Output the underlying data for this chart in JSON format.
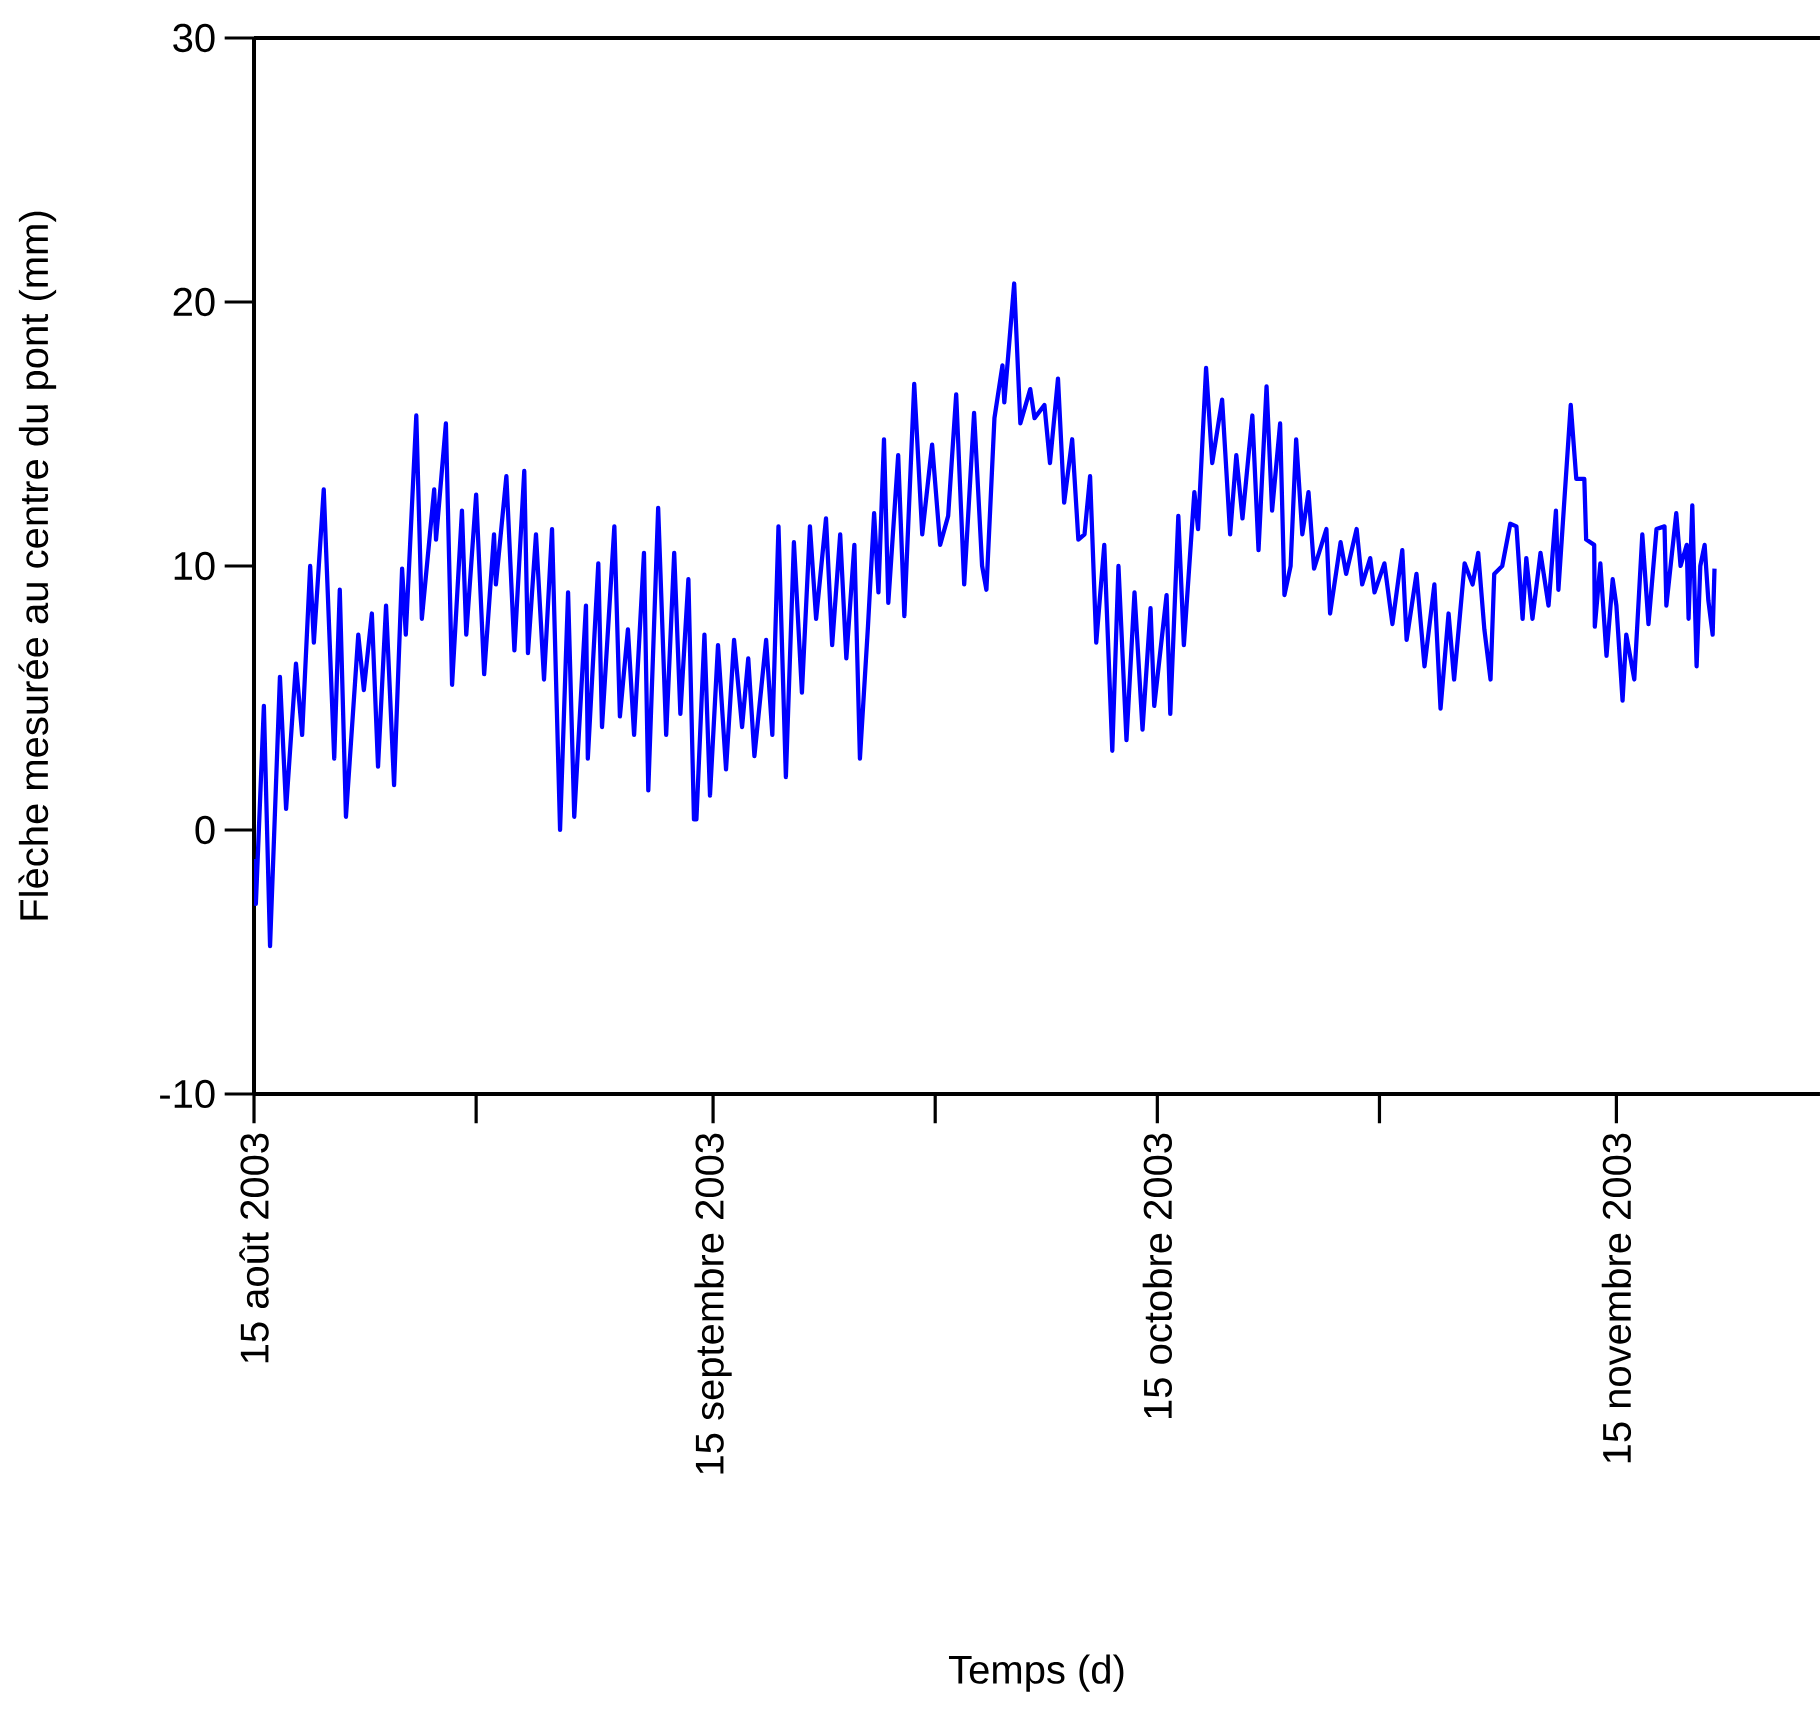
{
  "chart_data": {
    "type": "line",
    "xlabel": "Temps (d)",
    "ylabel": "Flèche mesurée au centre du pont (mm)",
    "xlim": [
      "2003-08-15",
      "2003-11-28T18:00"
    ],
    "xticks": [
      {
        "value": "2003-08-15",
        "label": "15 août 2003"
      },
      {
        "value": "2003-08-30",
        "label": null
      },
      {
        "value": "2003-09-15",
        "label": "15 septembre 2003"
      },
      {
        "value": "2003-09-30",
        "label": null
      },
      {
        "value": "2003-10-15",
        "label": "15 octobre 2003"
      },
      {
        "value": "2003-10-30",
        "label": null
      },
      {
        "value": "2003-11-15",
        "label": "15 novembre 2003"
      }
    ],
    "ylim": [
      -10,
      30
    ],
    "yticks": [
      -10,
      0,
      10,
      20,
      30
    ],
    "series": [
      {
        "color": "#0000ff",
        "x": [
          "2003-08-15T00:00",
          "2003-08-15T03:00",
          "2003-08-15T16:00",
          "2003-08-16T02:00",
          "2003-08-16T18:00",
          "2003-08-17T04:00",
          "2003-08-17T20:00",
          "2003-08-18T06:00",
          "2003-08-18T19:00",
          "2003-08-19T01:00",
          "2003-08-19T17:00",
          "2003-08-20T10:00",
          "2003-08-20T19:00",
          "2003-08-21T05:00",
          "2003-08-22T01:00",
          "2003-08-22T10:00",
          "2003-08-22T23:00",
          "2003-08-23T09:00",
          "2003-08-23T22:00",
          "2003-08-24T11:00",
          "2003-08-25T00:00",
          "2003-08-25T06:00",
          "2003-08-25T23:00",
          "2003-08-26T08:00",
          "2003-08-27T04:00",
          "2003-08-27T07:00",
          "2003-08-27T23:00",
          "2003-08-28T09:00",
          "2003-08-29T01:00",
          "2003-08-29T08:00",
          "2003-08-30T00:00",
          "2003-08-30T13:00",
          "2003-08-31T05:00",
          "2003-08-31T08:00",
          "2003-09-01T01:00",
          "2003-09-01T14:00",
          "2003-09-02T06:00",
          "2003-09-02T12:00",
          "2003-09-03T01:00",
          "2003-09-03T14:00",
          "2003-09-04T03:00",
          "2003-09-04T16:00",
          "2003-09-05T05:00",
          "2003-09-05T15:00",
          "2003-09-06T10:00",
          "2003-09-06T13:00",
          "2003-09-07T06:00",
          "2003-09-07T12:00",
          "2003-09-08T08:00",
          "2003-09-08T17:00",
          "2003-09-09T06:00",
          "2003-09-09T16:00",
          "2003-09-10T08:00",
          "2003-09-10T15:00",
          "2003-09-11T07:00",
          "2003-09-11T20:00",
          "2003-09-12T09:00",
          "2003-09-12T19:00",
          "2003-09-13T08:00",
          "2003-09-13T17:00",
          "2003-09-13T21:00",
          "2003-09-14T10:00",
          "2003-09-14T19:00",
          "2003-09-15T08:00",
          "2003-09-15T21:00",
          "2003-09-16T10:00",
          "2003-09-16T23:00",
          "2003-09-17T09:00",
          "2003-09-17T19:00",
          "2003-09-18T14:00",
          "2003-09-19T00:00",
          "2003-09-19T10:00",
          "2003-09-19T22:00",
          "2003-09-20T11:00",
          "2003-09-21T00:00",
          "2003-09-21T13:00",
          "2003-09-21T23:00",
          "2003-09-22T15:00",
          "2003-09-23T01:00",
          "2003-09-23T14:00",
          "2003-09-24T00:00",
          "2003-09-24T13:00",
          "2003-09-24T22:00",
          "2003-09-25T11:00",
          "2003-09-25T21:00",
          "2003-09-26T04:00",
          "2003-09-26T13:00",
          "2003-09-26T20:00",
          "2003-09-27T12:00",
          "2003-09-27T22:00",
          "2003-09-28T14:00",
          "2003-09-29T03:00",
          "2003-09-29T19:00",
          "2003-09-30T08:00",
          "2003-09-30T21:00",
          "2003-10-01T10:00",
          "2003-10-01T23:00",
          "2003-10-02T15:00",
          "2003-10-03T04:00",
          "2003-10-03T11:00",
          "2003-10-04T00:00",
          "2003-10-04T13:00",
          "2003-10-04T16:00",
          "2003-10-05T08:00",
          "2003-10-05T18:00",
          "2003-10-06T10:00",
          "2003-10-06T17:00",
          "2003-10-07T09:00",
          "2003-10-07T18:00",
          "2003-10-08T07:00",
          "2003-10-08T17:00",
          "2003-10-09T06:00",
          "2003-10-09T16:00",
          "2003-10-10T02:00",
          "2003-10-10T11:00",
          "2003-10-10T21:00",
          "2003-10-11T10:00",
          "2003-10-11T23:00",
          "2003-10-12T09:00",
          "2003-10-12T22:00",
          "2003-10-13T11:00",
          "2003-10-14T00:00",
          "2003-10-14T13:00",
          "2003-10-14T19:00",
          "2003-10-15T15:00",
          "2003-10-15T21:00",
          "2003-10-16T10:00",
          "2003-10-16T19:00",
          "2003-10-17T12:00",
          "2003-10-17T18:00",
          "2003-10-18T07:00",
          "2003-10-18T17:00",
          "2003-10-19T09:00",
          "2003-10-19T22:00",
          "2003-10-20T08:00",
          "2003-10-20T18:00",
          "2003-10-21T10:00",
          "2003-10-21T20:00",
          "2003-10-22T09:00",
          "2003-10-22T18:00",
          "2003-10-23T07:00",
          "2003-10-23T14:00",
          "2003-10-24T00:00",
          "2003-10-24T09:00",
          "2003-10-24T19:00",
          "2003-10-25T05:00",
          "2003-10-25T14:00",
          "2003-10-26T10:00",
          "2003-10-26T16:00",
          "2003-10-27T09:00",
          "2003-10-27T18:00",
          "2003-10-28T11:00",
          "2003-10-28T20:00",
          "2003-10-29T09:00",
          "2003-10-29T16:00",
          "2003-10-30T08:00",
          "2003-10-30T21:00",
          "2003-10-31T13:00",
          "2003-10-31T20:00",
          "2003-11-01T12:00",
          "2003-11-02T01:00",
          "2003-11-02T17:00",
          "2003-11-03T03:00",
          "2003-11-03T16:00",
          "2003-11-04T01:00",
          "2003-11-04T18:00",
          "2003-11-05T07:00",
          "2003-11-05T16:00",
          "2003-11-06T02:00",
          "2003-11-06T12:00",
          "2003-11-06T18:00",
          "2003-11-07T07:00",
          "2003-11-07T20:00",
          "2003-11-08T06:00",
          "2003-11-08T16:00",
          "2003-11-08T22:00",
          "2003-11-09T08:00",
          "2003-11-09T21:00",
          "2003-11-10T10:00",
          "2003-11-10T22:00",
          "2003-11-11T02:00",
          "2003-11-11T22:00",
          "2003-11-12T07:00",
          "2003-11-12T20:00",
          "2003-11-12T23:00",
          "2003-11-13T12:00",
          "2003-11-13T13:00",
          "2003-11-13T22:00",
          "2003-11-14T08:00",
          "2003-11-14T18:00",
          "2003-11-15T00:00",
          "2003-11-15T10:00",
          "2003-11-15T16:00",
          "2003-11-16T05:00",
          "2003-11-16T18:00",
          "2003-11-17T04:00",
          "2003-11-17T17:00",
          "2003-11-18T06:00",
          "2003-11-18T09:00",
          "2003-11-19T01:00",
          "2003-11-19T08:00",
          "2003-11-19T18:00",
          "2003-11-19T21:00",
          "2003-11-20T03:00",
          "2003-11-20T10:00",
          "2003-11-20T16:00",
          "2003-11-20T23:00",
          "2003-11-21T05:00",
          "2003-11-21T12:00",
          "2003-11-21T15:00"
        ],
        "values": [
          -1.1,
          -2.8,
          4.7,
          -4.4,
          5.8,
          0.8,
          6.3,
          3.6,
          10.0,
          7.1,
          12.9,
          2.7,
          9.1,
          0.5,
          7.4,
          5.3,
          8.2,
          2.4,
          8.5,
          1.7,
          9.9,
          7.4,
          15.7,
          8.0,
          12.9,
          11.0,
          15.4,
          5.5,
          12.1,
          7.4,
          12.7,
          5.9,
          11.2,
          9.3,
          13.4,
          6.8,
          13.6,
          6.7,
          11.2,
          5.7,
          11.4,
          0.0,
          9.0,
          0.5,
          8.5,
          2.7,
          10.1,
          3.9,
          11.5,
          4.3,
          7.6,
          3.6,
          10.5,
          1.5,
          12.2,
          3.6,
          10.5,
          4.4,
          9.5,
          0.4,
          0.4,
          7.4,
          1.3,
          7.0,
          2.3,
          7.2,
          3.9,
          6.5,
          2.8,
          7.2,
          3.6,
          11.5,
          2.0,
          10.9,
          5.2,
          11.5,
          8.0,
          11.8,
          7.0,
          11.2,
          6.5,
          10.8,
          2.7,
          7.7,
          12.0,
          9.0,
          14.8,
          8.6,
          14.2,
          8.1,
          16.9,
          11.2,
          14.6,
          10.8,
          11.9,
          16.5,
          9.3,
          15.8,
          10.0,
          9.1,
          15.6,
          17.6,
          16.2,
          20.7,
          15.4,
          16.7,
          15.6,
          16.1,
          13.9,
          17.1,
          12.4,
          14.8,
          11.0,
          11.2,
          13.4,
          7.1,
          10.8,
          3.0,
          10.0,
          3.4,
          9.0,
          3.8,
          8.4,
          4.7,
          8.9,
          4.4,
          11.9,
          7.0,
          12.8,
          11.4,
          17.5,
          13.9,
          16.3,
          11.2,
          14.2,
          11.8,
          15.7,
          10.6,
          16.8,
          12.1,
          15.4,
          8.9,
          10.0,
          14.8,
          11.2,
          12.8,
          9.9,
          11.4,
          8.2,
          10.9,
          9.7,
          11.4,
          9.3,
          10.3,
          9.0,
          10.1,
          7.8,
          10.6,
          7.2,
          9.7,
          6.2,
          9.3,
          4.6,
          8.2,
          5.7,
          10.1,
          9.3,
          10.5,
          7.6,
          5.7,
          9.7,
          10.0,
          11.6,
          11.5,
          8.0,
          10.3,
          8.0,
          10.5,
          8.5,
          12.1,
          9.1,
          16.1,
          13.3,
          13.3,
          11.0,
          10.8,
          7.7,
          10.1,
          6.6,
          9.5,
          8.5,
          4.9,
          7.4,
          5.7,
          11.2,
          7.8,
          11.4,
          11.5,
          8.5,
          12.0,
          10.0,
          10.8,
          8.0,
          12.3,
          6.2,
          10.0,
          10.8,
          8.7,
          7.4,
          9.9
        ]
      }
    ]
  }
}
